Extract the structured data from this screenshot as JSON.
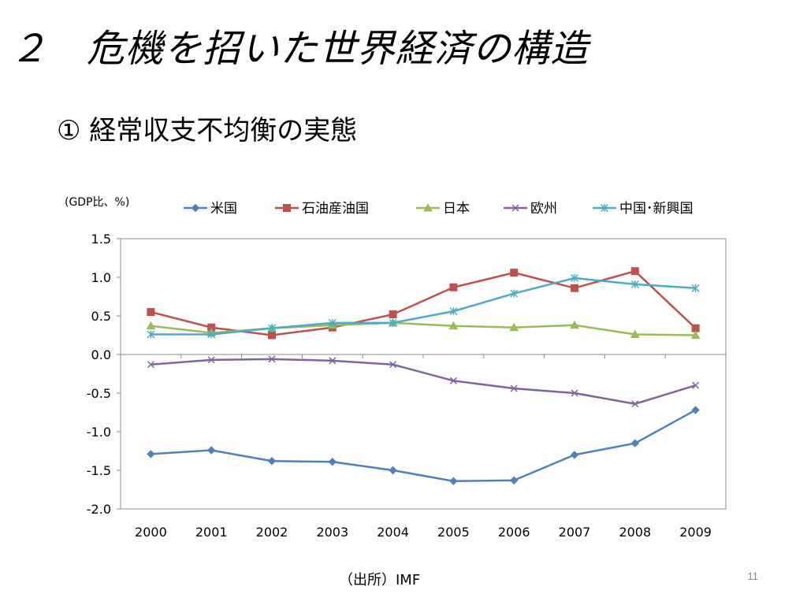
{
  "slide": {
    "title": "２　危機を招いた世界経済の構造",
    "subtitle": "① 経常収支不均衡の実態",
    "source": "（出所）IMF",
    "page_number": "11"
  },
  "chart_data": {
    "type": "line",
    "unit_label": "(GDP比、%)",
    "x": [
      "2000",
      "2001",
      "2002",
      "2003",
      "2004",
      "2005",
      "2006",
      "2007",
      "2008",
      "2009"
    ],
    "ylim": [
      -2.0,
      1.5
    ],
    "yticks": [
      "1.5",
      "1.0",
      "0.5",
      "0.0",
      "-0.5",
      "-1.0",
      "-1.5",
      "-2.0"
    ],
    "ytick_values": [
      1.5,
      1.0,
      0.5,
      0.0,
      -0.5,
      -1.0,
      -1.5,
      -2.0
    ],
    "grid": false,
    "legend_position": "top",
    "series": [
      {
        "name": "米国",
        "color": "#4f81bd",
        "marker": "diamond",
        "values": [
          -1.29,
          -1.24,
          -1.38,
          -1.39,
          -1.5,
          -1.64,
          -1.63,
          -1.3,
          -1.15,
          -0.72
        ]
      },
      {
        "name": "石油産油国",
        "color": "#c0504d",
        "marker": "square",
        "values": [
          0.55,
          0.35,
          0.25,
          0.35,
          0.52,
          0.87,
          1.06,
          0.86,
          1.08,
          0.34
        ]
      },
      {
        "name": "日本",
        "color": "#9bbb59",
        "marker": "triangle",
        "values": [
          0.37,
          0.28,
          0.34,
          0.38,
          0.41,
          0.37,
          0.35,
          0.38,
          0.26,
          0.25
        ]
      },
      {
        "name": "欧州",
        "color": "#8064a2",
        "marker": "x",
        "values": [
          -0.13,
          -0.07,
          -0.06,
          -0.08,
          -0.13,
          -0.34,
          -0.44,
          -0.5,
          -0.64,
          -0.4
        ]
      },
      {
        "name": "中国･新興国",
        "color": "#4bacc6",
        "marker": "star",
        "values": [
          0.26,
          0.26,
          0.34,
          0.41,
          0.41,
          0.56,
          0.79,
          0.99,
          0.91,
          0.86
        ]
      }
    ]
  }
}
